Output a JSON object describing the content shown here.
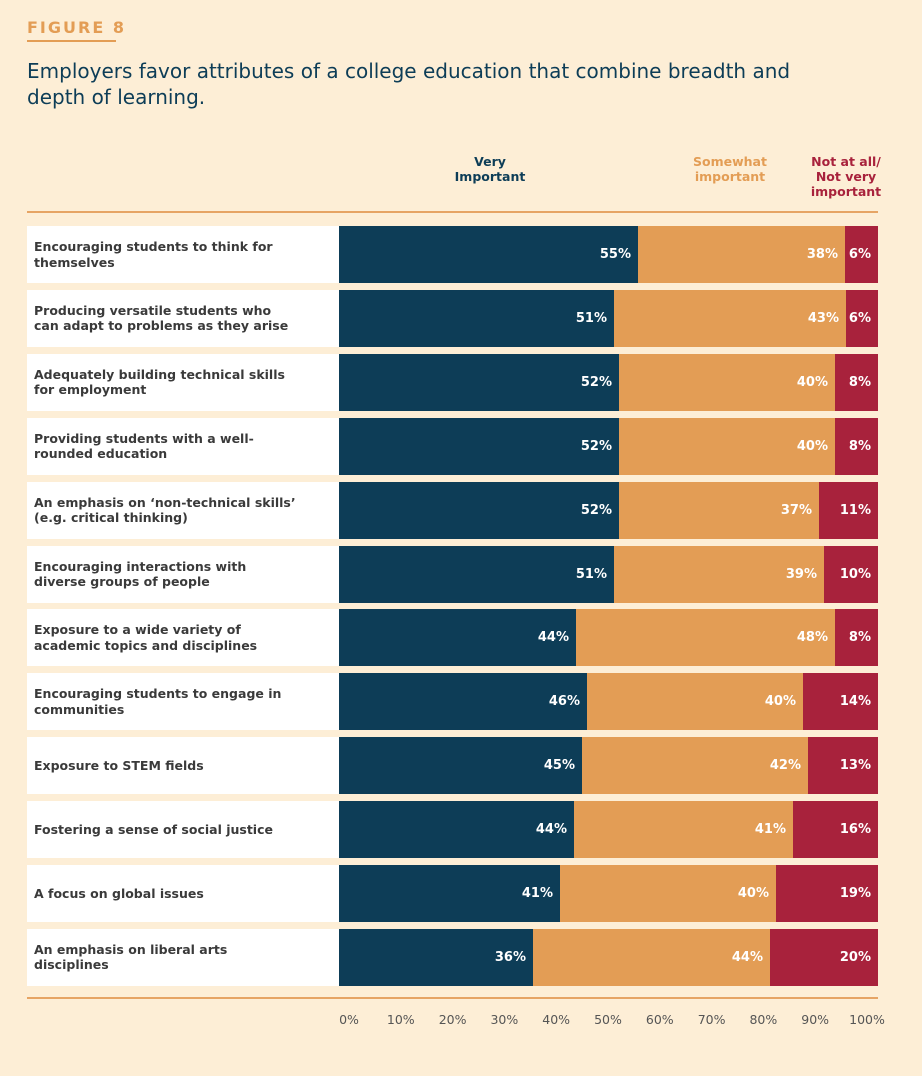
{
  "figure_label": "FIGURE 8",
  "colors": {
    "very": "#0d3d57",
    "somewhat": "#e39d55",
    "not": "#a8223c"
  },
  "chart_data": {
    "type": "bar",
    "orientation": "horizontal",
    "stacked": true,
    "title": "Employers favor attributes of a college education that combine breadth and depth of learning.",
    "legend_placement": "top",
    "legend": {
      "very": "Very Important",
      "somewhat": "Somewhat important",
      "not": "Not at all/ Not very important"
    },
    "categories": [
      "Encouraging students to think for themselves",
      "Producing versatile students who can adapt to problems as they arise",
      "Adequately building technical skills for employment",
      "Providing students with a well-rounded education",
      "An emphasis on ‘non-technical skills’ (e.g. critical thinking)",
      "Encouraging interactions with diverse groups of people",
      "Exposure to a wide variety of academic topics and disciplines",
      "Encouraging students to engage in communities",
      "Exposure to STEM fields",
      "Fostering a sense of social justice",
      "A focus on global issues",
      "An emphasis on liberal arts disciplines"
    ],
    "series": [
      {
        "name": "Very Important",
        "key": "very",
        "values": [
          55,
          51,
          52,
          52,
          52,
          51,
          44,
          46,
          45,
          44,
          41,
          36
        ]
      },
      {
        "name": "Somewhat important",
        "key": "somewhat",
        "values": [
          38,
          43,
          40,
          40,
          37,
          39,
          48,
          40,
          42,
          41,
          40,
          44
        ]
      },
      {
        "name": "Not at all/ Not very important",
        "key": "not",
        "values": [
          6,
          6,
          8,
          8,
          11,
          10,
          8,
          14,
          13,
          16,
          19,
          20
        ]
      }
    ],
    "value_suffix": "%",
    "xlim": [
      0,
      100
    ],
    "x_ticks": [
      "0%",
      "10%",
      "20%",
      "30%",
      "40%",
      "50%",
      "60%",
      "70%",
      "80%",
      "90%",
      "100%"
    ],
    "grid": false
  }
}
